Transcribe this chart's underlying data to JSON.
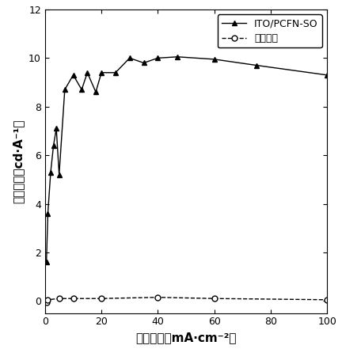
{
  "series1_label": "ITO/PCFN-SO",
  "series2_label": "对照器件",
  "series1_x": [
    0.5,
    1.0,
    2.0,
    3.0,
    4.0,
    5.0,
    7.0,
    10.0,
    13.0,
    15.0,
    18.0,
    20.0,
    25.0,
    30.0,
    35.0,
    40.0,
    47.0,
    60.0,
    75.0,
    100.0
  ],
  "series1_y": [
    1.6,
    3.6,
    5.3,
    6.4,
    7.1,
    5.2,
    8.7,
    9.3,
    8.7,
    9.4,
    8.6,
    9.4,
    9.4,
    10.0,
    9.8,
    10.0,
    10.05,
    9.95,
    9.7,
    9.3
  ],
  "series2_x": [
    0.5,
    1.0,
    5.0,
    10.0,
    20.0,
    40.0,
    60.0,
    100.0
  ],
  "series2_y": [
    -0.05,
    0.05,
    0.1,
    0.1,
    0.1,
    0.15,
    0.1,
    0.05
  ],
  "xlabel": "电流密度（mA·cm⁻²）",
  "ylabel": "电流效率（cd·A⁻¹）",
  "xlim": [
    0,
    100
  ],
  "ylim": [
    -0.5,
    12
  ],
  "yticks": [
    0,
    2,
    4,
    6,
    8,
    10,
    12
  ],
  "xticks": [
    0,
    20,
    40,
    60,
    80,
    100
  ],
  "line1_color": "#000000",
  "line2_color": "#000000",
  "marker1": "^",
  "marker2": "o",
  "line1_style": "-",
  "line2_style": "--",
  "background_color": "#ffffff",
  "axis_fontsize": 11,
  "tick_fontsize": 9,
  "legend_fontsize": 9
}
